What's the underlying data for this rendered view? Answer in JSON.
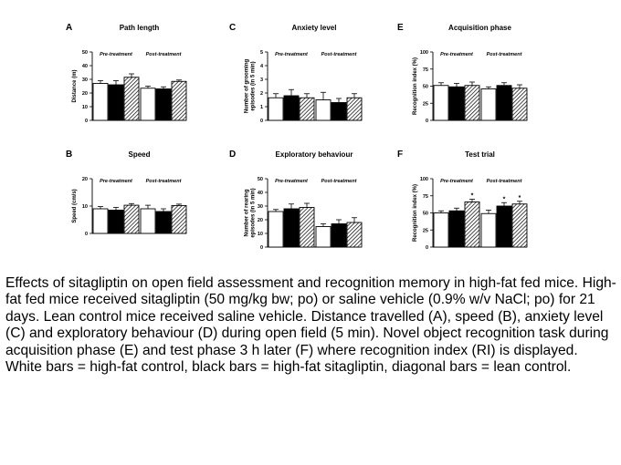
{
  "caption": "Effects of sitagliptin on open field assessment and recognition memory in high-fat fed mice. High-fat fed mice received sitagliptin (50 mg/kg bw; po) or saline vehicle (0.9% w/v NaCl; po) for 21 days. Lean control mice received saline vehicle. Distance travelled (A), speed (B), anxiety level (C) and exploratory behaviour (D) during open field (5 min). Novel object recognition task during acquisition phase (E) and test phase 3 h later (F) where recognition index (RI) is displayed. White bars = high-fat control, black bars = high-fat sitagliptin, diagonal bars = lean control.",
  "colors": {
    "high_fat_control": "#ffffff",
    "high_fat_sitagliptin": "#000000",
    "lean_control": "diagonal-hatch",
    "axis": "#000000"
  },
  "chart_data": [
    {
      "id": "A",
      "letter": "A",
      "type": "bar",
      "title": "Path length",
      "ylabel": "Distance (m)",
      "ylim": [
        0,
        50
      ],
      "yticks": [
        "0",
        "10",
        "20",
        "30",
        "40",
        "50"
      ],
      "groups": [
        "Pre-treatment",
        "Post-treatment"
      ],
      "series": [
        {
          "name": "high-fat control",
          "values": [
            27,
            23.5
          ],
          "errors": [
            2,
            1.5
          ]
        },
        {
          "name": "high-fat sitagliptin",
          "values": [
            26,
            23
          ],
          "errors": [
            3,
            1.5
          ]
        },
        {
          "name": "lean control",
          "values": [
            31.5,
            28.5
          ],
          "errors": [
            2.5,
            1
          ]
        }
      ],
      "significance": [
        [],
        []
      ]
    },
    {
      "id": "B",
      "letter": "B",
      "type": "bar",
      "title": "Speed",
      "ylabel": "Speed (cm/s)",
      "ylim": [
        0,
        20
      ],
      "yticks": [
        "0",
        "10",
        "20"
      ],
      "groups": [
        "Pre-treatment",
        "Post-treatment"
      ],
      "series": [
        {
          "name": "high-fat control",
          "values": [
            9,
            9
          ],
          "errors": [
            0.8,
            1.3
          ]
        },
        {
          "name": "high-fat sitagliptin",
          "values": [
            8.5,
            8
          ],
          "errors": [
            1,
            1
          ]
        },
        {
          "name": "lean control",
          "values": [
            10.3,
            10.2
          ],
          "errors": [
            0.6,
            0.5
          ]
        }
      ],
      "significance": [
        [],
        []
      ]
    },
    {
      "id": "C",
      "letter": "C",
      "type": "bar",
      "title": "Anxiety level",
      "ylabel": "Number of grooming\nepisodes (in 5 min)",
      "ylim": [
        0,
        5
      ],
      "yticks": [
        "0",
        "1",
        "2",
        "3",
        "4",
        "5"
      ],
      "groups": [
        "Pre-treatment",
        "Post-treatment"
      ],
      "series": [
        {
          "name": "high-fat control",
          "values": [
            1.65,
            1.5
          ],
          "errors": [
            0.3,
            0.55
          ]
        },
        {
          "name": "high-fat sitagliptin",
          "values": [
            1.8,
            1.3
          ],
          "errors": [
            0.45,
            0.3
          ]
        },
        {
          "name": "lean control",
          "values": [
            1.65,
            1.65
          ],
          "errors": [
            0.3,
            0.3
          ]
        }
      ],
      "significance": [
        [],
        []
      ]
    },
    {
      "id": "D",
      "letter": "D",
      "type": "bar",
      "title": "Exploratory behaviour",
      "ylabel": "Number of rearing\nepisodes (in 5 min)",
      "ylim": [
        0,
        50
      ],
      "yticks": [
        "0",
        "10",
        "20",
        "30",
        "40",
        "50"
      ],
      "groups": [
        "Pre-treatment",
        "Post-treatment"
      ],
      "series": [
        {
          "name": "high-fat control",
          "values": [
            26,
            15
          ],
          "errors": [
            1.5,
            2
          ]
        },
        {
          "name": "high-fat sitagliptin",
          "values": [
            28,
            17
          ],
          "errors": [
            3.5,
            3
          ]
        },
        {
          "name": "lean control",
          "values": [
            29,
            18
          ],
          "errors": [
            3,
            3.5
          ]
        }
      ],
      "significance": [
        [],
        []
      ]
    },
    {
      "id": "E",
      "letter": "E",
      "type": "bar",
      "title": "Acquisition phase",
      "ylabel": "Recognition index (%)",
      "ylim": [
        0,
        100
      ],
      "yticks": [
        "0",
        "25",
        "50",
        "75",
        "100"
      ],
      "groups": [
        "Pre-treatment",
        "Post-treatment"
      ],
      "series": [
        {
          "name": "high-fat control",
          "values": [
            51,
            46
          ],
          "errors": [
            4,
            3
          ]
        },
        {
          "name": "high-fat sitagliptin",
          "values": [
            49,
            51
          ],
          "errors": [
            5,
            4
          ]
        },
        {
          "name": "lean control",
          "values": [
            51,
            47
          ],
          "errors": [
            5,
            5
          ]
        }
      ],
      "significance": [
        [],
        []
      ]
    },
    {
      "id": "F",
      "letter": "F",
      "type": "bar",
      "title": "Test trial",
      "ylabel": "Recognition index (%)",
      "ylim": [
        0,
        100
      ],
      "yticks": [
        "0",
        "25",
        "50",
        "75",
        "100"
      ],
      "groups": [
        "Pre-treatment",
        "Post-treatment"
      ],
      "series": [
        {
          "name": "high-fat control",
          "values": [
            50,
            49
          ],
          "errors": [
            3,
            5
          ]
        },
        {
          "name": "high-fat sitagliptin",
          "values": [
            53,
            60
          ],
          "errors": [
            4,
            5
          ]
        },
        {
          "name": "lean control",
          "values": [
            66,
            63
          ],
          "errors": [
            4,
            4
          ]
        }
      ],
      "significance": [
        [
          "",
          "",
          "*"
        ],
        [
          "",
          "*",
          "*"
        ]
      ]
    }
  ]
}
